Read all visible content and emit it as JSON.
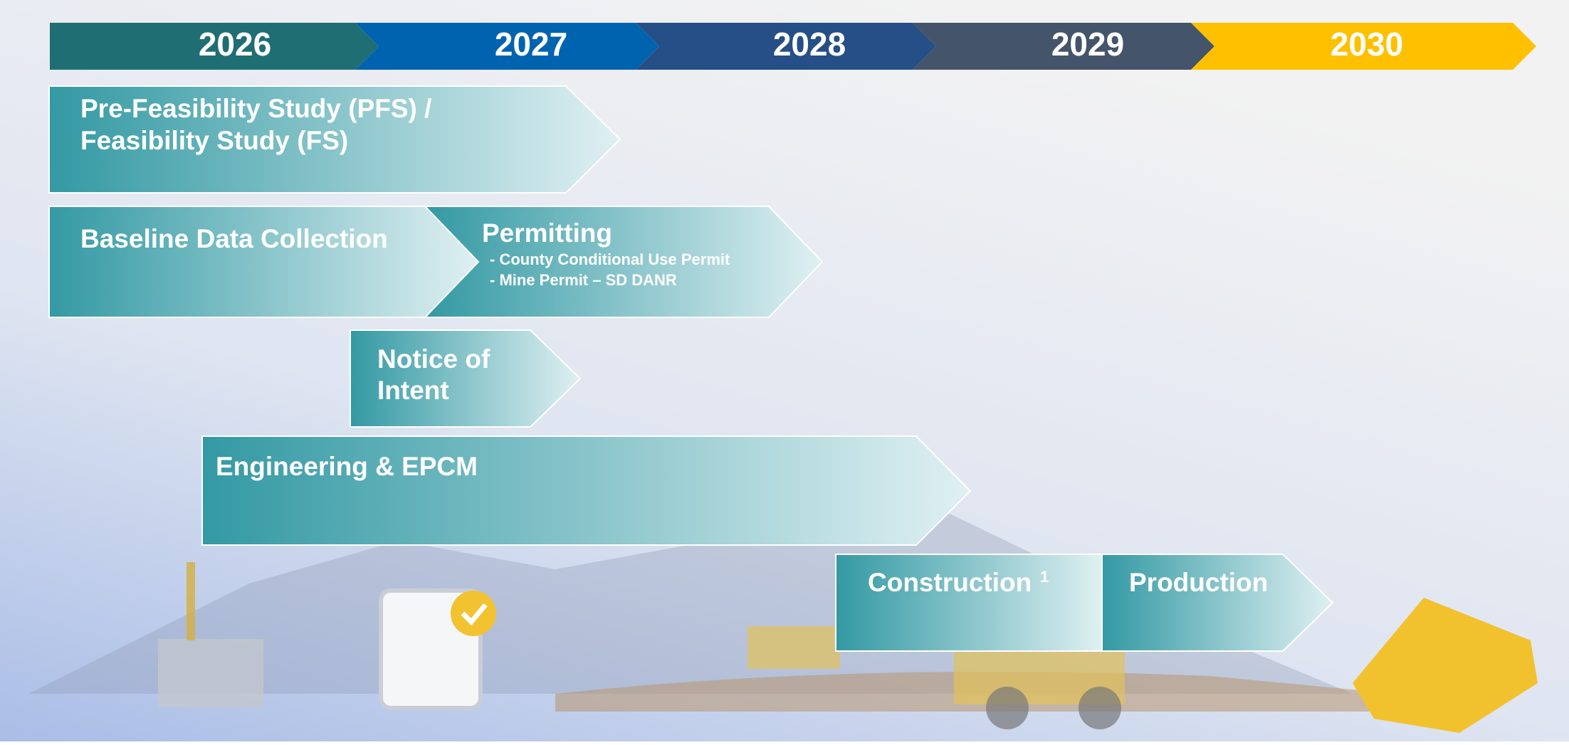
{
  "years": [
    "2026",
    "2027",
    "2028",
    "2029",
    "2030"
  ],
  "phases": [
    {
      "lines": [
        "Pre-Feasibility Study (PFS) /",
        "Feasibility Study (FS)"
      ]
    },
    {
      "lines": [
        "Baseline Data Collection"
      ]
    },
    {
      "lines": [
        "Permitting"
      ],
      "items": [
        "- County Conditional Use Permit",
        "- Mine Permit – SD DANR"
      ]
    },
    {
      "lines": [
        "Notice of",
        "Intent"
      ]
    },
    {
      "lines": [
        "Engineering & EPCM"
      ]
    },
    {
      "lines": [
        "Construction"
      ],
      "note": "1"
    },
    {
      "lines": [
        "Production"
      ]
    }
  ]
}
